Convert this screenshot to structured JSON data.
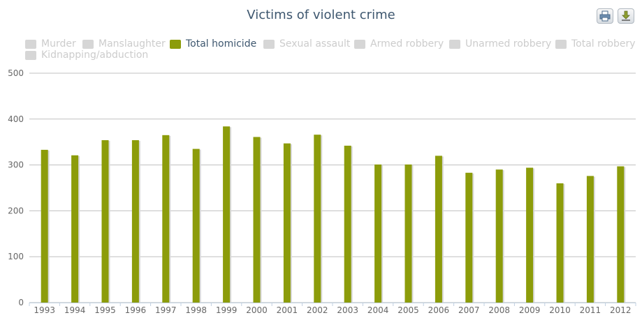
{
  "chart_data": {
    "type": "bar",
    "title": "Victims of violent crime",
    "xlabel": "",
    "ylabel": "",
    "categories": [
      "1993",
      "1994",
      "1995",
      "1996",
      "1997",
      "1998",
      "1999",
      "2000",
      "2001",
      "2002",
      "2003",
      "2004",
      "2005",
      "2006",
      "2007",
      "2008",
      "2009",
      "2010",
      "2011",
      "2012"
    ],
    "series": [
      {
        "name": "Total homicide",
        "color": "#8c9c0a",
        "values": [
          333,
          321,
          354,
          354,
          365,
          335,
          384,
          361,
          347,
          366,
          342,
          301,
          301,
          320,
          283,
          290,
          294,
          260,
          276,
          297
        ]
      }
    ],
    "ylim": [
      0,
      500
    ],
    "yticks": [
      "0",
      "100",
      "200",
      "300",
      "400",
      "500"
    ],
    "grid": true,
    "legend": {
      "placement": "top",
      "items": [
        {
          "label": "Murder",
          "active": false
        },
        {
          "label": "Manslaughter",
          "active": false
        },
        {
          "label": "Total homicide",
          "active": true
        },
        {
          "label": "Sexual assault",
          "active": false
        },
        {
          "label": "Armed robbery",
          "active": false
        },
        {
          "label": "Unarmed robbery",
          "active": false
        },
        {
          "label": "Total robbery",
          "active": false
        },
        {
          "label": "Kidnapping/abduction",
          "active": false
        }
      ]
    }
  },
  "toolbar": {
    "print_icon": "printer-icon",
    "download_icon": "download-icon"
  }
}
